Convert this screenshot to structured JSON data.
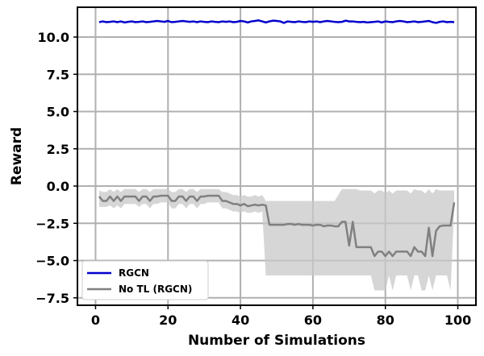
{
  "chart_data": {
    "type": "line",
    "xlabel": "Number of Simulations",
    "ylabel": "Reward",
    "xlim": [
      -5,
      105
    ],
    "ylim": [
      -8,
      12
    ],
    "xticks": [
      0,
      20,
      40,
      60,
      80,
      100
    ],
    "yticks": [
      -7.5,
      -5.0,
      -2.5,
      0.0,
      2.5,
      5.0,
      7.5,
      10.0
    ],
    "xtick_labels": [
      "0",
      "20",
      "40",
      "60",
      "80",
      "100"
    ],
    "ytick_labels": [
      "−7.5",
      "−5.0",
      "−2.5",
      "0.0",
      "2.5",
      "5.0",
      "7.5",
      "10.0"
    ],
    "grid": true,
    "legend_position": "bottom-left",
    "series": [
      {
        "name": "RGCN",
        "color": "#0000cc",
        "band_color": "#6666ff",
        "x": [
          1,
          2,
          3,
          4,
          5,
          6,
          7,
          8,
          9,
          10,
          11,
          12,
          13,
          14,
          15,
          16,
          17,
          18,
          19,
          20,
          21,
          22,
          23,
          24,
          25,
          26,
          27,
          28,
          29,
          30,
          31,
          32,
          33,
          34,
          35,
          36,
          37,
          38,
          39,
          40,
          41,
          42,
          43,
          44,
          45,
          46,
          47,
          48,
          49,
          50,
          51,
          52,
          53,
          54,
          55,
          56,
          57,
          58,
          59,
          60,
          61,
          62,
          63,
          64,
          65,
          66,
          67,
          68,
          69,
          70,
          71,
          72,
          73,
          74,
          75,
          76,
          77,
          78,
          79,
          80,
          81,
          82,
          83,
          84,
          85,
          86,
          87,
          88,
          89,
          90,
          91,
          92,
          93,
          94,
          95,
          96,
          97,
          98,
          99
        ],
        "values": [
          11.0,
          11.05,
          11.0,
          11.02,
          11.05,
          11.0,
          11.05,
          10.98,
          11.02,
          11.05,
          11.0,
          11.02,
          11.05,
          11.0,
          11.02,
          11.05,
          11.08,
          11.05,
          11.02,
          11.08,
          11.0,
          11.02,
          11.05,
          11.08,
          11.05,
          11.02,
          11.05,
          11.0,
          11.05,
          11.02,
          11.0,
          11.05,
          11.02,
          11.0,
          11.05,
          11.02,
          11.05,
          11.0,
          11.02,
          11.08,
          11.05,
          10.98,
          11.05,
          11.08,
          11.12,
          11.05,
          10.98,
          11.05,
          11.1,
          11.08,
          11.05,
          10.95,
          11.05,
          11.02,
          11.0,
          11.05,
          11.02,
          11.0,
          11.05,
          11.02,
          11.05,
          11.0,
          11.05,
          11.08,
          11.05,
          11.02,
          11.0,
          11.02,
          11.1,
          11.05,
          11.05,
          11.02,
          11.0,
          11.02,
          10.98,
          11.0,
          11.02,
          11.05,
          10.98,
          11.05,
          11.02,
          11.0,
          11.05,
          11.08,
          11.05,
          11.0,
          11.02,
          11.05,
          11.0,
          11.02,
          11.05,
          11.08,
          11.0,
          10.95,
          11.02,
          11.05,
          11.0,
          11.02,
          11.0
        ],
        "band": 0.06
      },
      {
        "name": "No TL (RGCN)",
        "color": "#808080",
        "band_color": "#c8c8c8",
        "x": [
          1,
          2,
          3,
          4,
          5,
          6,
          7,
          8,
          9,
          10,
          11,
          12,
          13,
          14,
          15,
          16,
          17,
          18,
          19,
          20,
          21,
          22,
          23,
          24,
          25,
          26,
          27,
          28,
          29,
          30,
          31,
          32,
          33,
          34,
          35,
          36,
          37,
          38,
          39,
          40,
          41,
          42,
          43,
          44,
          45,
          46,
          47,
          48,
          49,
          50,
          51,
          52,
          53,
          54,
          55,
          56,
          57,
          58,
          59,
          60,
          61,
          62,
          63,
          64,
          65,
          66,
          67,
          68,
          69,
          70,
          71,
          72,
          73,
          74,
          75,
          76,
          77,
          78,
          79,
          80,
          81,
          82,
          83,
          84,
          85,
          86,
          87,
          88,
          89,
          90,
          91,
          92,
          93,
          94,
          95,
          96,
          97,
          98,
          99
        ],
        "values": [
          -0.7,
          -1.0,
          -1.0,
          -0.7,
          -1.0,
          -0.7,
          -1.0,
          -0.7,
          -0.7,
          -0.7,
          -0.7,
          -1.0,
          -0.7,
          -0.7,
          -1.0,
          -0.7,
          -0.7,
          -0.65,
          -0.65,
          -0.65,
          -1.0,
          -1.0,
          -0.7,
          -0.7,
          -1.0,
          -0.7,
          -0.7,
          -1.0,
          -0.7,
          -0.7,
          -0.65,
          -0.65,
          -0.65,
          -0.65,
          -1.0,
          -1.0,
          -1.1,
          -1.2,
          -1.2,
          -1.3,
          -1.2,
          -1.35,
          -1.3,
          -1.25,
          -1.3,
          -1.25,
          -1.3,
          -2.6,
          -2.6,
          -2.6,
          -2.6,
          -2.6,
          -2.55,
          -2.55,
          -2.6,
          -2.55,
          -2.6,
          -2.6,
          -2.6,
          -2.65,
          -2.6,
          -2.6,
          -2.7,
          -2.65,
          -2.65,
          -2.7,
          -2.7,
          -2.4,
          -2.4,
          -4.0,
          -2.4,
          -4.1,
          -4.1,
          -4.1,
          -4.1,
          -4.1,
          -4.7,
          -4.4,
          -4.4,
          -4.7,
          -4.4,
          -4.7,
          -4.4,
          -4.4,
          -4.4,
          -4.4,
          -4.7,
          -4.1,
          -4.4,
          -4.4,
          -4.7,
          -2.8,
          -4.7,
          -3.0,
          -2.7,
          -2.65,
          -2.65,
          -2.65,
          -1.1
        ],
        "band_low": [
          -1.4,
          -1.4,
          -1.4,
          -1.3,
          -1.5,
          -1.3,
          -1.5,
          -1.2,
          -1.2,
          -1.2,
          -1.2,
          -1.4,
          -1.2,
          -1.2,
          -1.5,
          -1.2,
          -1.2,
          -1.1,
          -1.1,
          -1.1,
          -1.5,
          -1.5,
          -1.2,
          -1.2,
          -1.5,
          -1.2,
          -1.2,
          -1.5,
          -1.2,
          -1.2,
          -1.1,
          -1.1,
          -1.1,
          -1.1,
          -1.5,
          -1.5,
          -1.6,
          -1.7,
          -1.7,
          -1.8,
          -1.7,
          -1.8,
          -1.8,
          -1.7,
          -1.8,
          -1.7,
          -6.0,
          -6.0,
          -6.0,
          -6.0,
          -6.0,
          -6.0,
          -6.0,
          -6.0,
          -6.0,
          -6.0,
          -6.0,
          -6.0,
          -6.0,
          -6.0,
          -6.0,
          -6.0,
          -6.0,
          -6.0,
          -6.0,
          -6.0,
          -6.0,
          -6.0,
          -6.0,
          -6.0,
          -6.0,
          -6.0,
          -6.0,
          -6.0,
          -6.0,
          -6.0,
          -7.0,
          -7.0,
          -7.0,
          -7.0,
          -6.0,
          -7.0,
          -6.0,
          -6.0,
          -6.0,
          -6.0,
          -7.0,
          -6.0,
          -6.0,
          -7.0,
          -7.0,
          -6.0,
          -7.0,
          -6.0,
          -6.0,
          -6.0,
          -6.0,
          -7.0,
          -1.5
        ],
        "band_high": [
          -0.3,
          -0.4,
          -0.4,
          -0.2,
          -0.4,
          -0.2,
          -0.4,
          -0.2,
          -0.2,
          -0.2,
          -0.2,
          -0.4,
          -0.2,
          -0.2,
          -0.4,
          -0.2,
          -0.2,
          -0.2,
          -0.2,
          -0.2,
          -0.4,
          -0.4,
          -0.2,
          -0.2,
          -0.4,
          -0.2,
          -0.2,
          -0.4,
          -0.2,
          -0.2,
          -0.2,
          -0.2,
          -0.2,
          -0.2,
          -0.4,
          -0.4,
          -0.5,
          -0.6,
          -0.6,
          -0.7,
          -0.6,
          -0.7,
          -0.7,
          -0.6,
          -0.7,
          -0.6,
          -1.0,
          -1.0,
          -1.0,
          -1.0,
          -1.0,
          -1.0,
          -1.0,
          -1.0,
          -1.0,
          -1.0,
          -1.0,
          -1.0,
          -1.0,
          -1.0,
          -1.0,
          -1.0,
          -1.0,
          -1.0,
          -1.0,
          -1.0,
          -0.6,
          -0.2,
          -0.2,
          -0.2,
          -0.2,
          -0.2,
          -0.3,
          -0.3,
          -0.3,
          -0.3,
          -0.5,
          -0.3,
          -0.3,
          -0.5,
          -0.3,
          -0.5,
          -0.3,
          -0.3,
          -0.3,
          -0.3,
          -0.5,
          -0.2,
          -0.3,
          -0.3,
          -0.5,
          -0.2,
          -0.5,
          -0.2,
          -0.3,
          -0.3,
          -0.3,
          -0.3,
          -0.3
        ]
      }
    ]
  }
}
